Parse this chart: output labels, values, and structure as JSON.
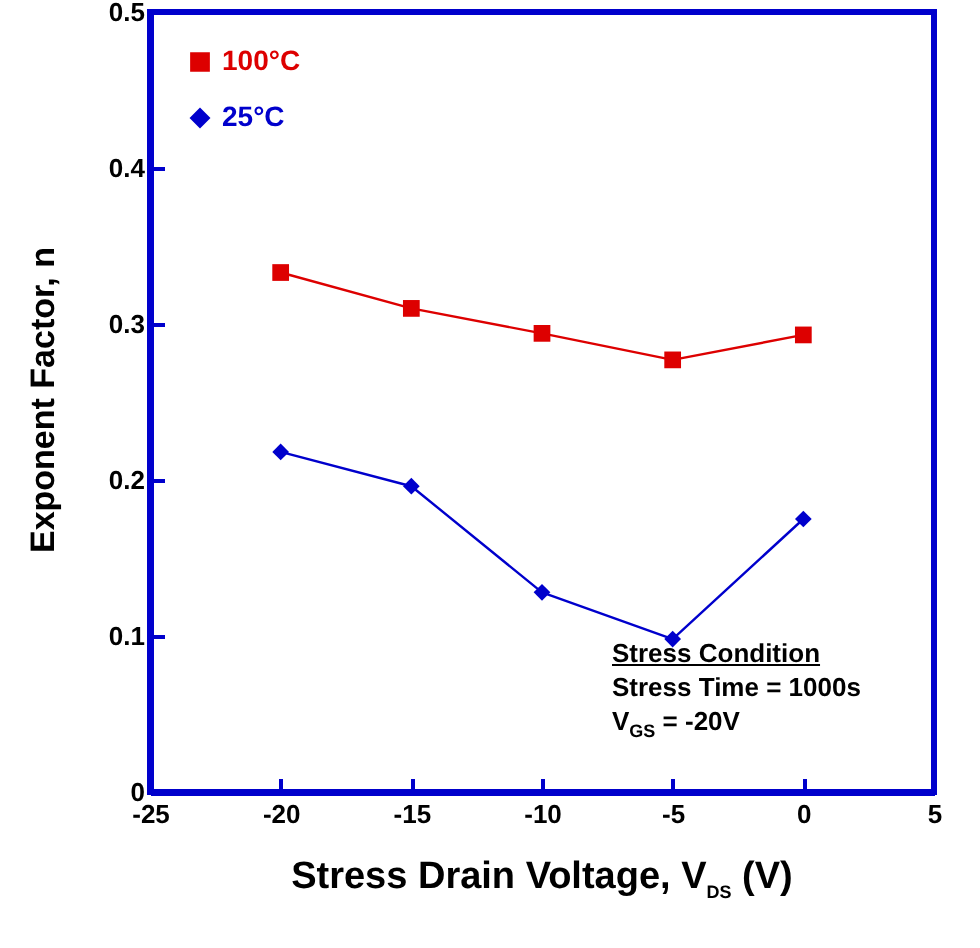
{
  "chart_data": {
    "type": "line",
    "xlabel": "Stress Drain Voltage, V$_{DS}$ (V)",
    "ylabel": "Exponent Factor, n",
    "x": [
      -20,
      -15,
      -10,
      -5,
      0
    ],
    "series": [
      {
        "name": "100°C",
        "color": "#dd0000",
        "marker": "square",
        "values": [
          0.333,
          0.31,
          0.294,
          0.277,
          0.293
        ]
      },
      {
        "name": "25°C",
        "color": "#0000cc",
        "marker": "diamond",
        "values": [
          0.218,
          0.196,
          0.128,
          0.098,
          0.175
        ]
      }
    ],
    "xlim": [
      -25,
      5
    ],
    "xticks": [
      -25,
      -20,
      -15,
      -10,
      -5,
      0,
      5
    ],
    "ylim": [
      0,
      0.5
    ],
    "yticks": [
      0,
      0.1,
      0.2,
      0.3,
      0.4,
      0.5
    ],
    "grid": false,
    "legend": "top left",
    "line_style": "solid",
    "annotations": [
      "Stress Condition",
      "Stress Time = 1000s",
      "V$_{GS}$ = -20V"
    ]
  }
}
